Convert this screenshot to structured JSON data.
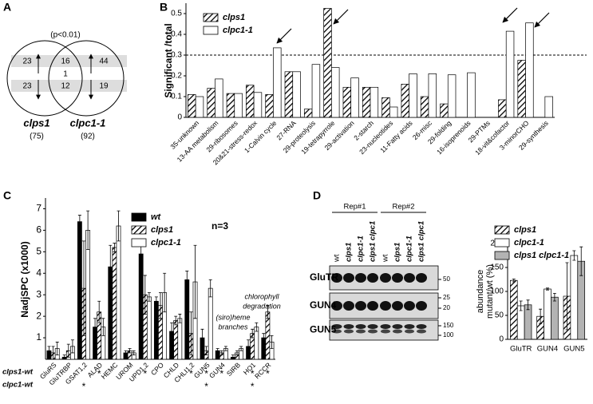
{
  "chart_data": [
    {
      "type": "venn",
      "panel": "A",
      "annotation": "(p<0.01)",
      "sets": [
        {
          "name": "clps1",
          "total": "(75)"
        },
        {
          "name": "clpc1-1",
          "total": "(92)"
        }
      ],
      "regions": {
        "clps1_only": {
          "up": 23,
          "down": 23
        },
        "shared": {
          "up": 16,
          "opposite": 1,
          "down": 12
        },
        "clpc1-1_only": {
          "up": 44,
          "down": 19
        }
      }
    },
    {
      "type": "bar",
      "panel": "B",
      "ylabel": "Significant /total",
      "categories": [
        "35-unknown",
        "13-AA metabolism",
        "29-ribosomes",
        "20&21-stress-redox",
        "1-Calvin cycle",
        "27-RNA",
        "29-proteolysis",
        "19-tetrapyrrole",
        "29-activation",
        "2-starch",
        "23-nucleotides",
        "11-Fatty acids",
        "26-misc",
        "29-folding",
        "16-isoprenoids",
        "29-PTMs",
        "18-vit&cofactor",
        "3-minorCHO",
        "29-synthesis"
      ],
      "series": [
        {
          "name": "clps1",
          "color": "#000000",
          "hatch": true,
          "values": [
            0.11,
            0.14,
            0.115,
            0.155,
            0.11,
            0.22,
            0.04,
            0.525,
            0.145,
            0.145,
            0.095,
            0.16,
            0.1,
            0.065,
            0,
            0,
            0.085,
            0.275,
            0
          ]
        },
        {
          "name": "clpc1-1",
          "color": "#ffffff",
          "hatch": false,
          "values": [
            0.1,
            0.185,
            0.115,
            0.12,
            0.335,
            0.22,
            0.255,
            0.24,
            0.19,
            0.145,
            0.05,
            0.21,
            0.21,
            0.205,
            0.215,
            0,
            0.415,
            0.455,
            0.1
          ]
        }
      ],
      "ylim": [
        0,
        0.55
      ],
      "yticks": [
        0,
        0.1,
        0.2,
        0.3,
        0.4,
        0.5
      ],
      "reference_line": 0.3
    },
    {
      "type": "bar",
      "panel": "C",
      "ylabel": "NadjSPC (x1000)",
      "n_label": "n=3",
      "categories": [
        "GluRS",
        "GluTRBP",
        "GSAT1,2",
        "ALAD",
        "HEMC",
        "UROM",
        "UPD1,2",
        "CPO",
        "CHLD",
        "CHLI1,2",
        "GUN5",
        "GUN4",
        "SIRB",
        "HO1",
        "RCCR"
      ],
      "series": [
        {
          "name": "wt",
          "color": "#000000",
          "hatch": false,
          "values": [
            0.4,
            0.1,
            6.4,
            1.5,
            4.3,
            0.3,
            4.9,
            2.7,
            1.3,
            3.7,
            1.0,
            0.4,
            0.1,
            0.6,
            1.0
          ],
          "errors": [
            0.2,
            0.1,
            0.3,
            0.4,
            1.0,
            0.1,
            0.5,
            0.2,
            0.4,
            0.4,
            0.4,
            0.1,
            0.1,
            0.3,
            0.2
          ]
        },
        {
          "name": "clps1",
          "color": "#000000",
          "hatch": true,
          "values": [
            0.3,
            0.4,
            3.3,
            2.2,
            5.2,
            0.4,
            3.0,
            2.5,
            1.8,
            1.2,
            0.4,
            0.3,
            0.3,
            1.2,
            2.2
          ],
          "errors": [
            0.3,
            0.3,
            2.2,
            0.5,
            0.2,
            0.1,
            0.9,
            0.6,
            0.2,
            1.0,
            0.2,
            0.1,
            0.1,
            0.2,
            0.3
          ]
        },
        {
          "name": "clpc1-1",
          "color": "#ffffff",
          "hatch": false,
          "values": [
            0.5,
            0.6,
            6.0,
            1.5,
            6.2,
            0.3,
            2.9,
            3.1,
            1.9,
            3.6,
            3.3,
            0.5,
            0.5,
            1.5,
            0.8
          ],
          "errors": [
            0.3,
            0.3,
            0.9,
            0.4,
            0.7,
            0.1,
            0.2,
            0.9,
            0.2,
            1.7,
            0.4,
            0.1,
            0.1,
            0.2,
            0.3
          ]
        }
      ],
      "ylim": [
        0,
        7.5
      ],
      "yticks": [
        1,
        2,
        3,
        4,
        5,
        6,
        7
      ],
      "annotations": [
        {
          "lines": [
            "chlorophyll",
            "degradation"
          ]
        },
        {
          "lines": [
            "(siro)heme",
            "branches"
          ]
        }
      ],
      "significance": [
        {
          "name": "clps1-wt",
          "marks": [
            null,
            null,
            null,
            "*",
            null,
            null,
            "*",
            null,
            null,
            "*",
            "*",
            "*",
            null,
            "*",
            "*"
          ]
        },
        {
          "name": "clpc1-wt",
          "marks": [
            null,
            null,
            "*",
            null,
            null,
            null,
            null,
            null,
            null,
            null,
            "*",
            null,
            null,
            "*",
            null
          ]
        }
      ]
    },
    {
      "type": "blot",
      "panel": "D",
      "replicates": [
        "Rep#1",
        "Rep#2"
      ],
      "lanes": [
        "wt",
        "clps1",
        "clpc1-1",
        "clps1 clpc1"
      ],
      "rows": [
        {
          "name": "GluTR",
          "markers": [
            50
          ]
        },
        {
          "name": "GUN4",
          "markers": [
            25,
            20
          ]
        },
        {
          "name": "GUN5",
          "markers": [
            150,
            100
          ]
        }
      ]
    },
    {
      "type": "bar",
      "ylabel_lines": [
        "abundance",
        "mutant/wt (%)"
      ],
      "categories": [
        "GluTR",
        "GUN4",
        "GUN5"
      ],
      "series": [
        {
          "name": "clps1",
          "color": "#000000",
          "hatch": true,
          "values": [
            123,
            48,
            90
          ],
          "errors": [
            3,
            15,
            70
          ]
        },
        {
          "name": "clpc1-1",
          "color": "#ffffff",
          "hatch": false,
          "values": [
            70,
            105,
            175
          ],
          "errors": [
            10,
            2,
            10
          ]
        },
        {
          "name": "clps1 clpc1-1",
          "color": "#b3b3b3",
          "hatch": false,
          "values": [
            72,
            88,
            163
          ],
          "errors": [
            10,
            8,
            30
          ]
        }
      ],
      "ylim": [
        0,
        200
      ],
      "yticks": [
        0,
        50,
        100,
        150,
        200
      ]
    }
  ]
}
